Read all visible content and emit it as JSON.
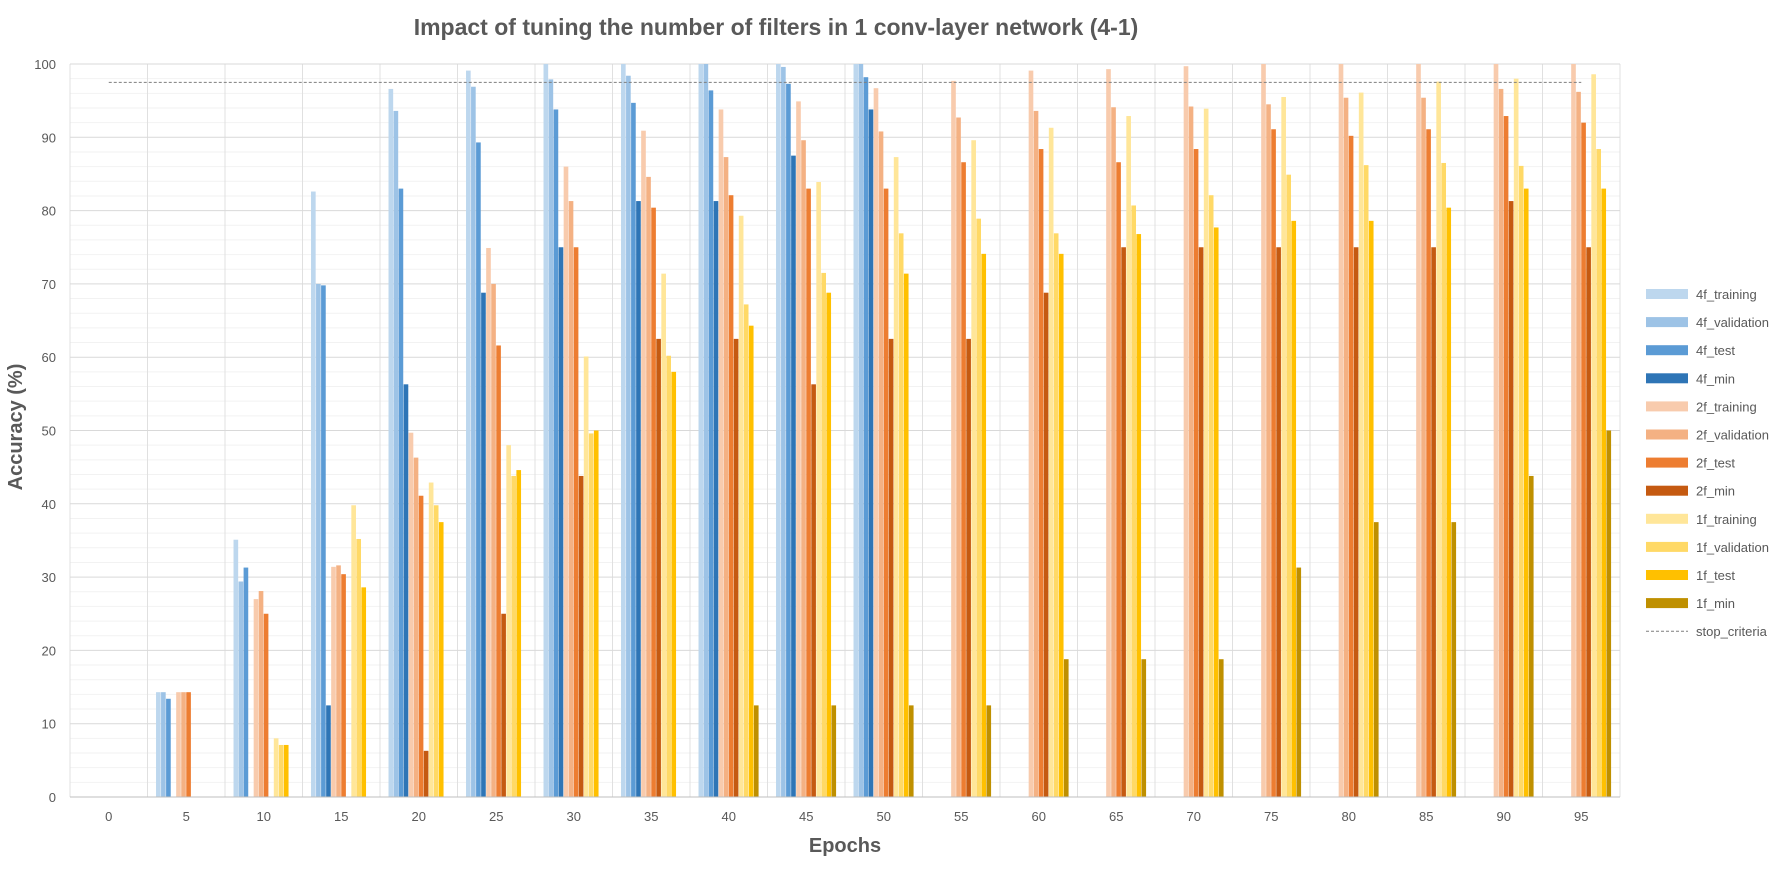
{
  "chart_data": {
    "type": "bar",
    "title": "Impact of tuning the number of filters in 1 conv-layer network (4-1)",
    "xlabel": "Epochs",
    "ylabel": "Accuracy (%)",
    "ylim": [
      0,
      100
    ],
    "yticks": [
      "0",
      "10",
      "20",
      "30",
      "40",
      "50",
      "60",
      "70",
      "80",
      "90",
      "100"
    ],
    "categories": [
      "0",
      "5",
      "10",
      "15",
      "20",
      "25",
      "30",
      "35",
      "40",
      "45",
      "50",
      "55",
      "60",
      "65",
      "70",
      "75",
      "80",
      "85",
      "90",
      "95"
    ],
    "grid": true,
    "legend_position": "right",
    "series": [
      {
        "name": "4f_training",
        "color": "#bdd7ee",
        "values": [
          null,
          14.3,
          35.1,
          82.6,
          96.6,
          99.1,
          100,
          100,
          100,
          100,
          100,
          null,
          null,
          null,
          null,
          null,
          null,
          null,
          null,
          null
        ]
      },
      {
        "name": "4f_validation",
        "color": "#9dc3e6",
        "values": [
          null,
          14.3,
          29.4,
          70.0,
          93.6,
          96.9,
          97.9,
          98.4,
          100,
          99.6,
          100,
          null,
          null,
          null,
          null,
          null,
          null,
          null,
          null,
          null
        ]
      },
      {
        "name": "4f_test",
        "color": "#5b9bd5",
        "values": [
          null,
          13.4,
          31.3,
          69.8,
          83.0,
          89.3,
          93.8,
          94.7,
          96.4,
          97.3,
          98.2,
          null,
          null,
          null,
          null,
          null,
          null,
          null,
          null,
          null
        ]
      },
      {
        "name": "4f_min",
        "color": "#2e75b6",
        "values": [
          null,
          null,
          null,
          12.5,
          56.3,
          68.8,
          75.0,
          81.3,
          81.3,
          87.5,
          93.8,
          null,
          null,
          null,
          null,
          null,
          null,
          null,
          null,
          null
        ]
      },
      {
        "name": "2f_training",
        "color": "#f8cbad",
        "values": [
          null,
          14.3,
          27.0,
          31.4,
          49.7,
          74.9,
          86.0,
          90.9,
          93.8,
          94.9,
          96.7,
          97.7,
          99.1,
          99.3,
          99.7,
          100,
          100,
          100,
          100,
          100
        ]
      },
      {
        "name": "2f_validation",
        "color": "#f4b183",
        "values": [
          null,
          14.3,
          28.1,
          31.6,
          46.3,
          70.0,
          81.3,
          84.6,
          87.3,
          89.6,
          90.8,
          92.7,
          93.6,
          94.1,
          94.2,
          94.5,
          95.4,
          95.4,
          96.6,
          96.2
        ]
      },
      {
        "name": "2f_test",
        "color": "#ed7d31",
        "values": [
          null,
          14.3,
          25.0,
          30.4,
          41.1,
          61.6,
          75.0,
          80.4,
          82.1,
          83.0,
          83.0,
          86.6,
          88.4,
          86.6,
          88.4,
          91.1,
          90.2,
          91.1,
          92.9,
          92.0
        ]
      },
      {
        "name": "2f_min",
        "color": "#c55a11",
        "values": [
          null,
          null,
          null,
          null,
          6.3,
          25.0,
          43.8,
          62.5,
          62.5,
          56.3,
          62.5,
          62.5,
          68.8,
          75.0,
          75.0,
          75.0,
          75.0,
          75.0,
          81.3,
          75.0
        ]
      },
      {
        "name": "1f_training",
        "color": "#ffe699",
        "values": [
          null,
          null,
          8.0,
          39.8,
          42.9,
          48.0,
          60.1,
          71.4,
          79.3,
          83.9,
          87.3,
          89.6,
          91.3,
          92.9,
          93.9,
          95.5,
          96.1,
          97.6,
          98.0,
          98.6
        ]
      },
      {
        "name": "1f_validation",
        "color": "#ffd966",
        "values": [
          null,
          null,
          7.1,
          35.2,
          39.8,
          43.8,
          49.6,
          60.2,
          67.2,
          71.5,
          76.9,
          78.9,
          76.9,
          80.7,
          82.1,
          84.9,
          86.2,
          86.5,
          86.1,
          88.4
        ]
      },
      {
        "name": "1f_test",
        "color": "#ffc000",
        "values": [
          null,
          null,
          7.1,
          28.6,
          37.5,
          44.6,
          50.0,
          58.0,
          64.3,
          68.8,
          71.4,
          74.1,
          74.1,
          76.8,
          77.7,
          78.6,
          78.6,
          80.4,
          83.0,
          83.0
        ]
      },
      {
        "name": "1f_min",
        "color": "#bf9000",
        "values": [
          null,
          null,
          null,
          null,
          null,
          null,
          null,
          null,
          12.5,
          12.5,
          12.5,
          12.5,
          18.8,
          18.8,
          18.8,
          31.3,
          37.5,
          37.5,
          43.8,
          50.0
        ]
      }
    ],
    "reference_line": {
      "name": "stop_criteria",
      "value": 97.5,
      "color": "#7f7f7f",
      "style": "dashed"
    }
  }
}
